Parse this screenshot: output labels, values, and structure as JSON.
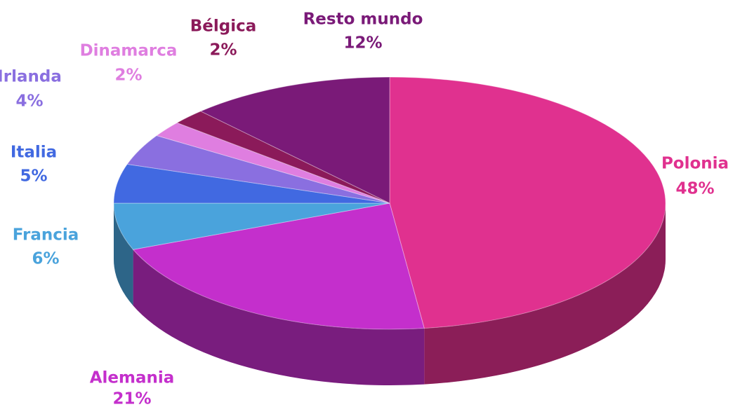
{
  "chart_data": {
    "type": "pie",
    "categories": [
      "Polonia",
      "Alemania",
      "Francia",
      "Italia",
      "Irlanda",
      "Dinamarca",
      "Bélgica",
      "Resto mundo"
    ],
    "values": [
      48,
      21,
      6,
      5,
      4,
      2,
      2,
      12
    ],
    "value_labels": [
      "48%",
      "21%",
      "6%",
      "5%",
      "4%",
      "2%",
      "2%",
      "12%"
    ],
    "colors": [
      "#e0318f",
      "#c42fcc",
      "#4aa3dc",
      "#4169e1",
      "#8a6fe0",
      "#df7ee0",
      "#8b1a5a",
      "#7a1a78"
    ]
  }
}
